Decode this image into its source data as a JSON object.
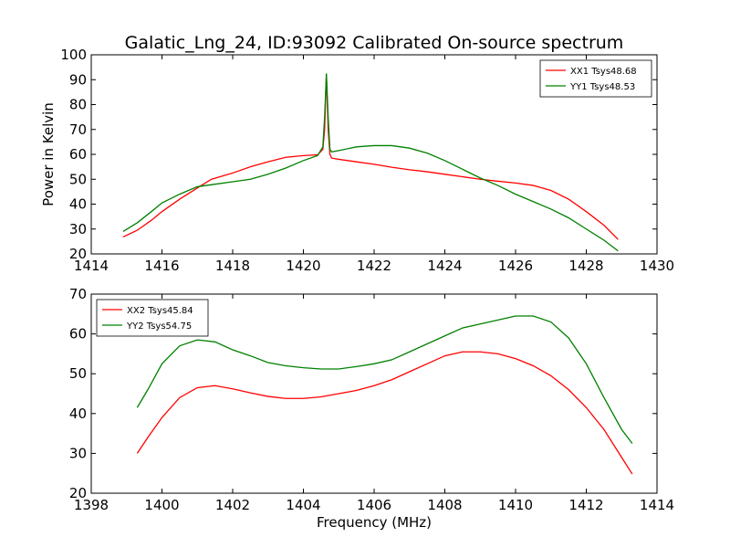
{
  "title": "Galatic_Lng_24, ID:93092 Calibrated On-source spectrum",
  "ylabel_shared": "Power in Kelvin",
  "xlabel_shared": "Frequency (MHz)",
  "colors": {
    "red": "#ff0000",
    "green": "#008000"
  },
  "chart_data": [
    {
      "type": "line",
      "xlim": [
        1414,
        1430
      ],
      "ylim": [
        20,
        100
      ],
      "xticks": [
        "1414",
        "1416",
        "1418",
        "1420",
        "1422",
        "1424",
        "1426",
        "1428",
        "1430"
      ],
      "yticks": [
        "20",
        "30",
        "40",
        "50",
        "60",
        "70",
        "80",
        "90",
        "100"
      ],
      "legend_position": "top-right",
      "grid": false,
      "series": [
        {
          "name": "XX1 Tsys48.68",
          "color": "#ff0000",
          "points": [
            [
              1414.9,
              26.8
            ],
            [
              1415.3,
              29.5
            ],
            [
              1415.7,
              33.5
            ],
            [
              1416.0,
              37.0
            ],
            [
              1416.5,
              42.0
            ],
            [
              1417.0,
              46.5
            ],
            [
              1417.4,
              50.0
            ],
            [
              1418.0,
              52.5
            ],
            [
              1418.5,
              55.0
            ],
            [
              1419.0,
              57.0
            ],
            [
              1419.5,
              58.8
            ],
            [
              1420.0,
              59.5
            ],
            [
              1420.4,
              59.8
            ],
            [
              1420.55,
              62.0
            ],
            [
              1420.6,
              70.0
            ],
            [
              1420.65,
              92.0
            ],
            [
              1420.7,
              70.0
            ],
            [
              1420.75,
              60.0
            ],
            [
              1420.8,
              58.5
            ],
            [
              1421.0,
              58.0
            ],
            [
              1421.5,
              57.0
            ],
            [
              1422.0,
              56.0
            ],
            [
              1422.5,
              54.8
            ],
            [
              1423.0,
              53.8
            ],
            [
              1423.5,
              53.0
            ],
            [
              1424.0,
              52.0
            ],
            [
              1424.5,
              51.0
            ],
            [
              1425.0,
              50.0
            ],
            [
              1425.5,
              49.2
            ],
            [
              1426.0,
              48.5
            ],
            [
              1426.5,
              47.5
            ],
            [
              1427.0,
              45.5
            ],
            [
              1427.5,
              42.0
            ],
            [
              1428.0,
              37.0
            ],
            [
              1428.5,
              31.5
            ],
            [
              1428.9,
              25.8
            ]
          ]
        },
        {
          "name": "YY1 Tsys48.53",
          "color": "#008000",
          "points": [
            [
              1414.9,
              29.0
            ],
            [
              1415.3,
              32.5
            ],
            [
              1415.7,
              37.0
            ],
            [
              1416.0,
              40.5
            ],
            [
              1416.5,
              44.0
            ],
            [
              1417.0,
              47.0
            ],
            [
              1417.5,
              48.0
            ],
            [
              1418.0,
              49.0
            ],
            [
              1418.5,
              50.0
            ],
            [
              1419.0,
              52.0
            ],
            [
              1419.5,
              54.5
            ],
            [
              1420.0,
              57.5
            ],
            [
              1420.4,
              59.5
            ],
            [
              1420.55,
              63.0
            ],
            [
              1420.6,
              75.0
            ],
            [
              1420.65,
              92.5
            ],
            [
              1420.7,
              75.0
            ],
            [
              1420.75,
              62.0
            ],
            [
              1420.8,
              61.0
            ],
            [
              1421.0,
              61.5
            ],
            [
              1421.5,
              63.0
            ],
            [
              1422.0,
              63.5
            ],
            [
              1422.5,
              63.5
            ],
            [
              1423.0,
              62.5
            ],
            [
              1423.5,
              60.5
            ],
            [
              1424.0,
              57.5
            ],
            [
              1424.5,
              54.0
            ],
            [
              1425.0,
              50.5
            ],
            [
              1425.5,
              47.5
            ],
            [
              1426.0,
              44.0
            ],
            [
              1426.5,
              41.0
            ],
            [
              1427.0,
              38.0
            ],
            [
              1427.5,
              34.5
            ],
            [
              1428.0,
              30.0
            ],
            [
              1428.5,
              25.5
            ],
            [
              1428.9,
              21.2
            ]
          ]
        }
      ]
    },
    {
      "type": "line",
      "xlim": [
        1398,
        1414
      ],
      "ylim": [
        20,
        70
      ],
      "xticks": [
        "1398",
        "1400",
        "1402",
        "1404",
        "1406",
        "1408",
        "1410",
        "1412",
        "1414"
      ],
      "yticks": [
        "20",
        "30",
        "40",
        "50",
        "60",
        "70"
      ],
      "legend_position": "top-left",
      "grid": false,
      "series": [
        {
          "name": "XX2 Tsys45.84",
          "color": "#ff0000",
          "points": [
            [
              1399.3,
              30.0
            ],
            [
              1399.6,
              34.0
            ],
            [
              1400.0,
              39.0
            ],
            [
              1400.5,
              44.0
            ],
            [
              1401.0,
              46.5
            ],
            [
              1401.5,
              47.0
            ],
            [
              1402.0,
              46.2
            ],
            [
              1402.5,
              45.2
            ],
            [
              1403.0,
              44.3
            ],
            [
              1403.5,
              43.8
            ],
            [
              1404.0,
              43.8
            ],
            [
              1404.5,
              44.2
            ],
            [
              1405.0,
              45.0
            ],
            [
              1405.5,
              45.8
            ],
            [
              1406.0,
              47.0
            ],
            [
              1406.5,
              48.5
            ],
            [
              1407.0,
              50.5
            ],
            [
              1407.5,
              52.5
            ],
            [
              1408.0,
              54.5
            ],
            [
              1408.5,
              55.5
            ],
            [
              1409.0,
              55.5
            ],
            [
              1409.5,
              55.0
            ],
            [
              1410.0,
              53.8
            ],
            [
              1410.5,
              52.0
            ],
            [
              1411.0,
              49.5
            ],
            [
              1411.5,
              46.0
            ],
            [
              1412.0,
              41.5
            ],
            [
              1412.5,
              36.0
            ],
            [
              1413.0,
              29.0
            ],
            [
              1413.3,
              24.8
            ]
          ]
        },
        {
          "name": "YY2 Tsys54.75",
          "color": "#008000",
          "points": [
            [
              1399.3,
              41.5
            ],
            [
              1399.6,
              46.0
            ],
            [
              1400.0,
              52.5
            ],
            [
              1400.5,
              57.0
            ],
            [
              1401.0,
              58.5
            ],
            [
              1401.5,
              58.0
            ],
            [
              1402.0,
              56.0
            ],
            [
              1402.5,
              54.5
            ],
            [
              1403.0,
              52.8
            ],
            [
              1403.5,
              52.0
            ],
            [
              1404.0,
              51.5
            ],
            [
              1404.5,
              51.2
            ],
            [
              1405.0,
              51.2
            ],
            [
              1405.5,
              51.8
            ],
            [
              1406.0,
              52.5
            ],
            [
              1406.5,
              53.5
            ],
            [
              1407.0,
              55.5
            ],
            [
              1407.5,
              57.5
            ],
            [
              1408.0,
              59.5
            ],
            [
              1408.5,
              61.5
            ],
            [
              1409.0,
              62.5
            ],
            [
              1409.5,
              63.5
            ],
            [
              1410.0,
              64.5
            ],
            [
              1410.5,
              64.5
            ],
            [
              1411.0,
              63.0
            ],
            [
              1411.5,
              59.0
            ],
            [
              1412.0,
              52.5
            ],
            [
              1412.5,
              44.0
            ],
            [
              1413.0,
              36.0
            ],
            [
              1413.3,
              32.5
            ]
          ]
        }
      ]
    }
  ]
}
